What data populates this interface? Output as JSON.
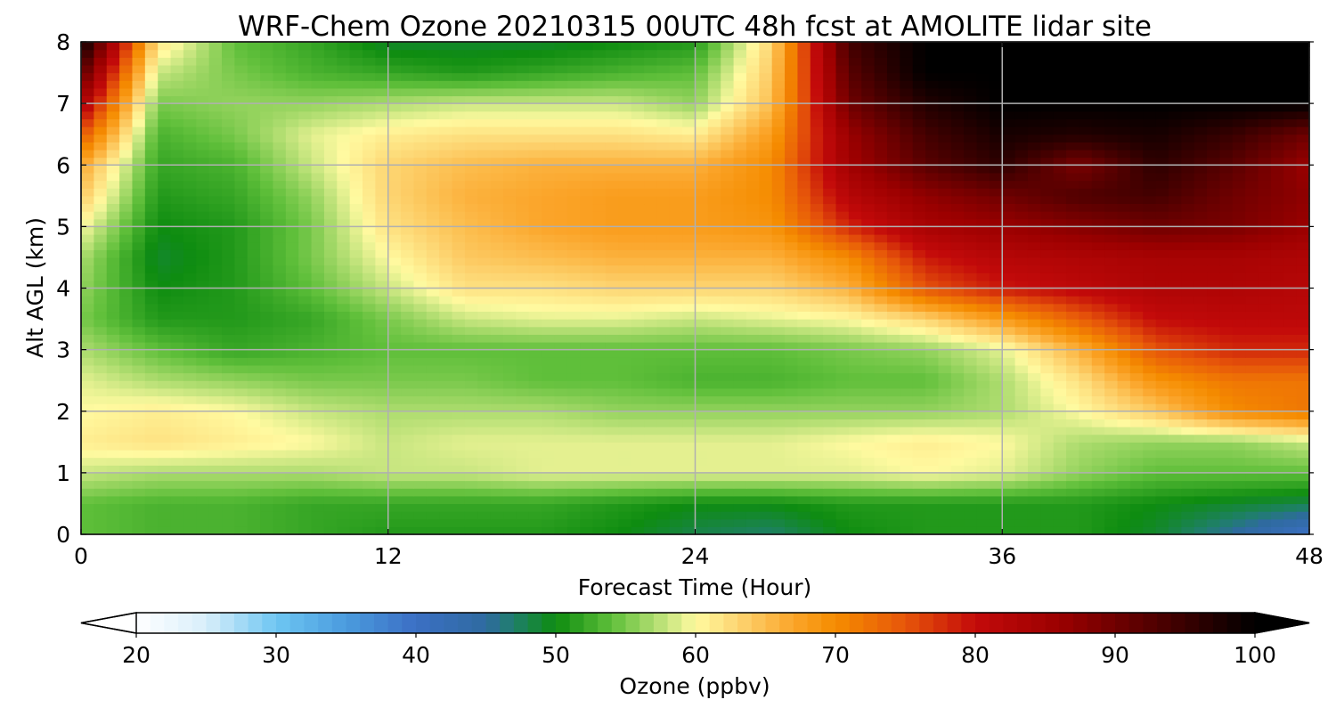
{
  "chart_data": {
    "type": "heatmap",
    "title": "WRF-Chem Ozone  20210315 00UTC 48h fcst at AMOLITE lidar site",
    "xlabel": "Forecast Time (Hour)",
    "ylabel": "Alt AGL (km)",
    "xlim": [
      0,
      48
    ],
    "ylim": [
      0,
      8
    ],
    "xticks": [
      "0",
      "12",
      "24",
      "36",
      "48"
    ],
    "yticks": [
      "0",
      "1",
      "2",
      "3",
      "4",
      "5",
      "6",
      "7",
      "8"
    ],
    "grid": true,
    "x": [
      0,
      3,
      6,
      9,
      12,
      15,
      18,
      21,
      24,
      27,
      30,
      33,
      36,
      39,
      42,
      45,
      48
    ],
    "y": [
      0,
      0.5,
      1,
      1.5,
      2,
      2.5,
      3,
      3.5,
      4,
      4.5,
      5,
      5.5,
      6,
      6.5,
      7,
      7.5,
      8
    ],
    "z": [
      [
        54,
        53,
        53,
        52,
        51,
        51,
        51,
        50,
        48,
        47,
        50,
        51,
        51,
        51,
        49,
        45,
        40
      ],
      [
        54,
        53,
        53,
        52,
        52,
        52,
        52,
        51,
        50,
        50,
        51,
        51,
        51,
        51,
        50,
        49,
        48
      ],
      [
        58,
        57,
        57,
        57,
        58,
        58,
        59,
        59,
        59,
        59,
        59,
        60,
        59,
        56,
        54,
        54,
        54
      ],
      [
        61,
        62,
        61,
        60,
        58,
        59,
        59,
        59,
        59,
        59,
        60,
        61,
        60,
        57,
        56,
        56,
        58
      ],
      [
        60,
        61,
        60,
        58,
        57,
        57,
        57,
        56,
        56,
        56,
        56,
        56,
        57,
        60,
        64,
        70,
        72
      ],
      [
        59,
        57,
        56,
        55,
        55,
        55,
        54,
        54,
        53,
        53,
        54,
        54,
        57,
        62,
        69,
        72,
        72
      ],
      [
        57,
        54,
        52,
        53,
        54,
        54,
        54,
        54,
        54,
        54,
        55,
        56,
        59,
        66,
        75,
        78,
        78
      ],
      [
        55,
        51,
        51,
        52,
        55,
        58,
        59,
        59,
        58,
        59,
        60,
        63,
        68,
        74,
        80,
        81,
        81
      ],
      [
        56,
        50,
        51,
        54,
        58,
        62,
        62,
        63,
        63,
        63,
        66,
        75,
        79,
        81,
        83,
        83,
        82
      ],
      [
        57,
        49,
        51,
        55,
        60,
        64,
        65,
        66,
        66,
        66,
        70,
        79,
        82,
        83,
        84,
        84,
        83
      ],
      [
        60,
        50,
        51,
        55,
        62,
        65,
        67,
        68,
        68,
        69,
        78,
        84,
        86,
        88,
        90,
        89,
        86
      ],
      [
        64,
        51,
        52,
        56,
        63,
        66,
        67,
        68,
        68,
        70,
        82,
        87,
        90,
        93,
        94,
        90,
        87
      ],
      [
        67,
        52,
        53,
        58,
        63,
        65,
        66,
        66,
        66,
        70,
        85,
        92,
        96,
        89,
        96,
        92,
        86
      ],
      [
        75,
        53,
        55,
        59,
        61,
        62,
        62,
        62,
        61,
        68,
        86,
        94,
        98,
        97,
        98,
        95,
        90
      ],
      [
        84,
        55,
        56,
        56,
        57,
        58,
        58,
        58,
        56,
        65,
        90,
        97,
        100,
        100,
        100,
        100,
        100
      ],
      [
        92,
        58,
        55,
        53,
        52,
        51,
        52,
        53,
        54,
        64,
        92,
        100,
        100,
        100,
        100,
        100,
        100
      ],
      [
        100,
        62,
        54,
        52,
        49,
        49,
        49,
        50,
        51,
        63,
        94,
        100,
        100,
        100,
        100,
        100,
        100
      ]
    ],
    "colorbar": {
      "label": "Ozone  (ppbv)",
      "range": [
        20,
        100
      ],
      "ticks": [
        "20",
        "30",
        "40",
        "50",
        "60",
        "70",
        "80",
        "90",
        "100"
      ],
      "extend": "both",
      "colors": [
        {
          "v": 20,
          "c": "#ffffff"
        },
        {
          "v": 25,
          "c": "#d8eefa"
        },
        {
          "v": 30,
          "c": "#6ec6f2"
        },
        {
          "v": 35,
          "c": "#4a9bde"
        },
        {
          "v": 40,
          "c": "#3b6fc4"
        },
        {
          "v": 45,
          "c": "#2f6aa0"
        },
        {
          "v": 47,
          "c": "#1f7f6a"
        },
        {
          "v": 50,
          "c": "#0e8c10"
        },
        {
          "v": 54,
          "c": "#5fbf3a"
        },
        {
          "v": 58,
          "c": "#c8e680"
        },
        {
          "v": 60,
          "c": "#fffaa0"
        },
        {
          "v": 63,
          "c": "#fdd572"
        },
        {
          "v": 67,
          "c": "#fba52a"
        },
        {
          "v": 70,
          "c": "#f58c00"
        },
        {
          "v": 75,
          "c": "#e6550a"
        },
        {
          "v": 80,
          "c": "#c30a0a"
        },
        {
          "v": 86,
          "c": "#9b0000"
        },
        {
          "v": 92,
          "c": "#5a0000"
        },
        {
          "v": 100,
          "c": "#000000"
        }
      ]
    }
  }
}
